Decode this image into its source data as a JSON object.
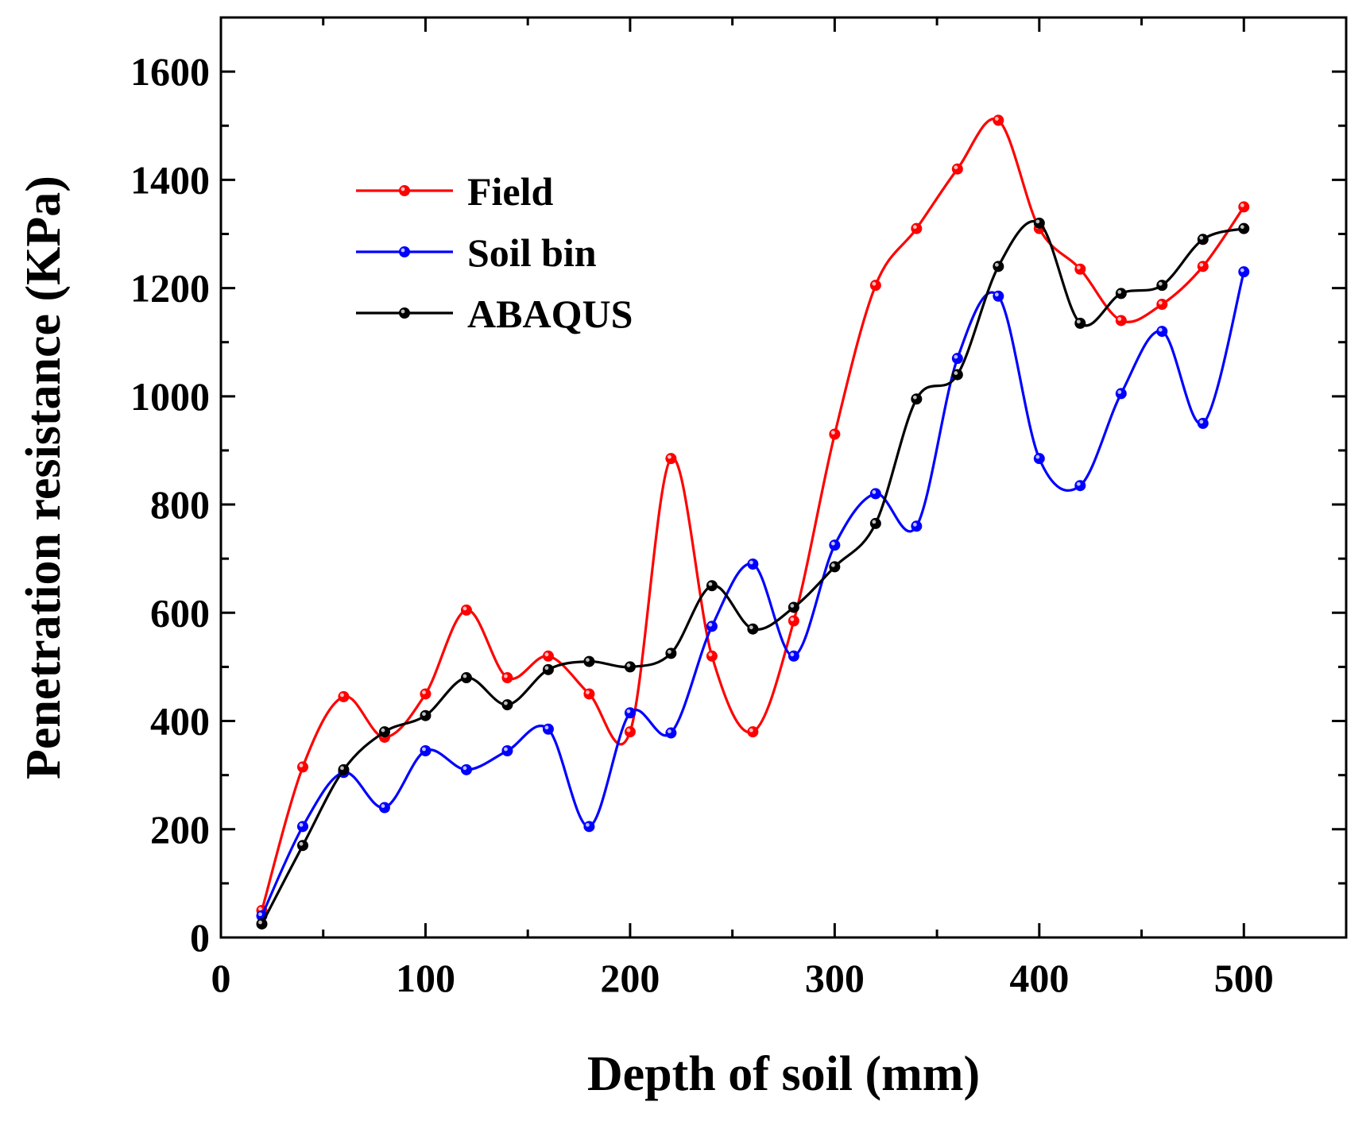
{
  "chart_data": {
    "type": "line",
    "title": "",
    "xlabel": "Depth of soil (mm)",
    "ylabel": "Penetration resistance (KPa)",
    "xlim": [
      0,
      550
    ],
    "ylim": [
      0,
      1700
    ],
    "xticks": [
      0,
      100,
      200,
      300,
      400,
      500
    ],
    "yticks": [
      0,
      200,
      400,
      600,
      800,
      1000,
      1200,
      1400,
      1600
    ],
    "xtick_labels": [
      "0",
      "100",
      "200",
      "300",
      "400",
      "500"
    ],
    "ytick_labels": [
      "0",
      "200",
      "400",
      "600",
      "800",
      "1000",
      "1200",
      "1400",
      "1600"
    ],
    "grid": false,
    "legend_position": "upper-left",
    "x": [
      20,
      40,
      60,
      80,
      100,
      120,
      140,
      160,
      180,
      200,
      220,
      240,
      260,
      280,
      300,
      320,
      340,
      360,
      380,
      400,
      420,
      440,
      460,
      480,
      500
    ],
    "series": [
      {
        "name": "Field",
        "color": "#ff0000",
        "values": [
          50,
          315,
          445,
          370,
          450,
          605,
          480,
          520,
          450,
          380,
          885,
          520,
          380,
          585,
          930,
          1205,
          1310,
          1420,
          1510,
          1310,
          1235,
          1140,
          1170,
          1240,
          1350
        ]
      },
      {
        "name": "Soil bin",
        "color": "#0000ff",
        "values": [
          40,
          205,
          305,
          240,
          345,
          310,
          345,
          385,
          205,
          415,
          378,
          575,
          690,
          520,
          725,
          820,
          760,
          1070,
          1185,
          885,
          835,
          1005,
          1120,
          950,
          1230
        ]
      },
      {
        "name": "ABAQUS",
        "color": "#000000",
        "values": [
          25,
          170,
          310,
          380,
          410,
          480,
          430,
          495,
          510,
          500,
          525,
          650,
          570,
          610,
          685,
          765,
          995,
          1040,
          1240,
          1320,
          1135,
          1190,
          1205,
          1290,
          1310
        ]
      }
    ]
  }
}
